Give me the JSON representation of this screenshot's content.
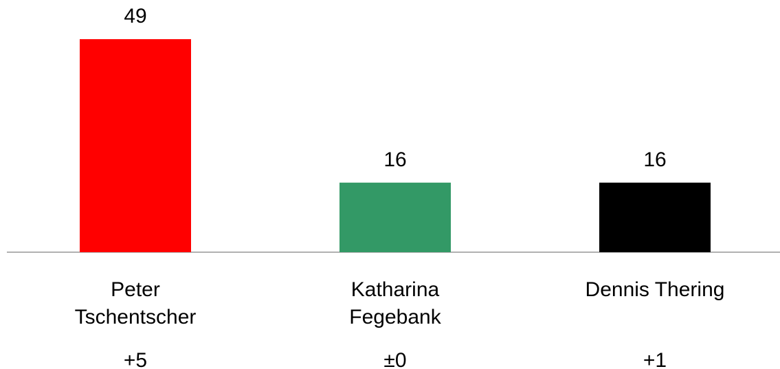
{
  "chart_data": {
    "type": "bar",
    "categories": [
      "Peter Tschentscher",
      "Katharina Fegebank",
      "Dennis Thering"
    ],
    "values": [
      49,
      16,
      16
    ],
    "colors": [
      "#ff0000",
      "#339966",
      "#000000"
    ],
    "changes": [
      "+5",
      "±0",
      "+1"
    ],
    "ylim": [
      0,
      49
    ]
  }
}
